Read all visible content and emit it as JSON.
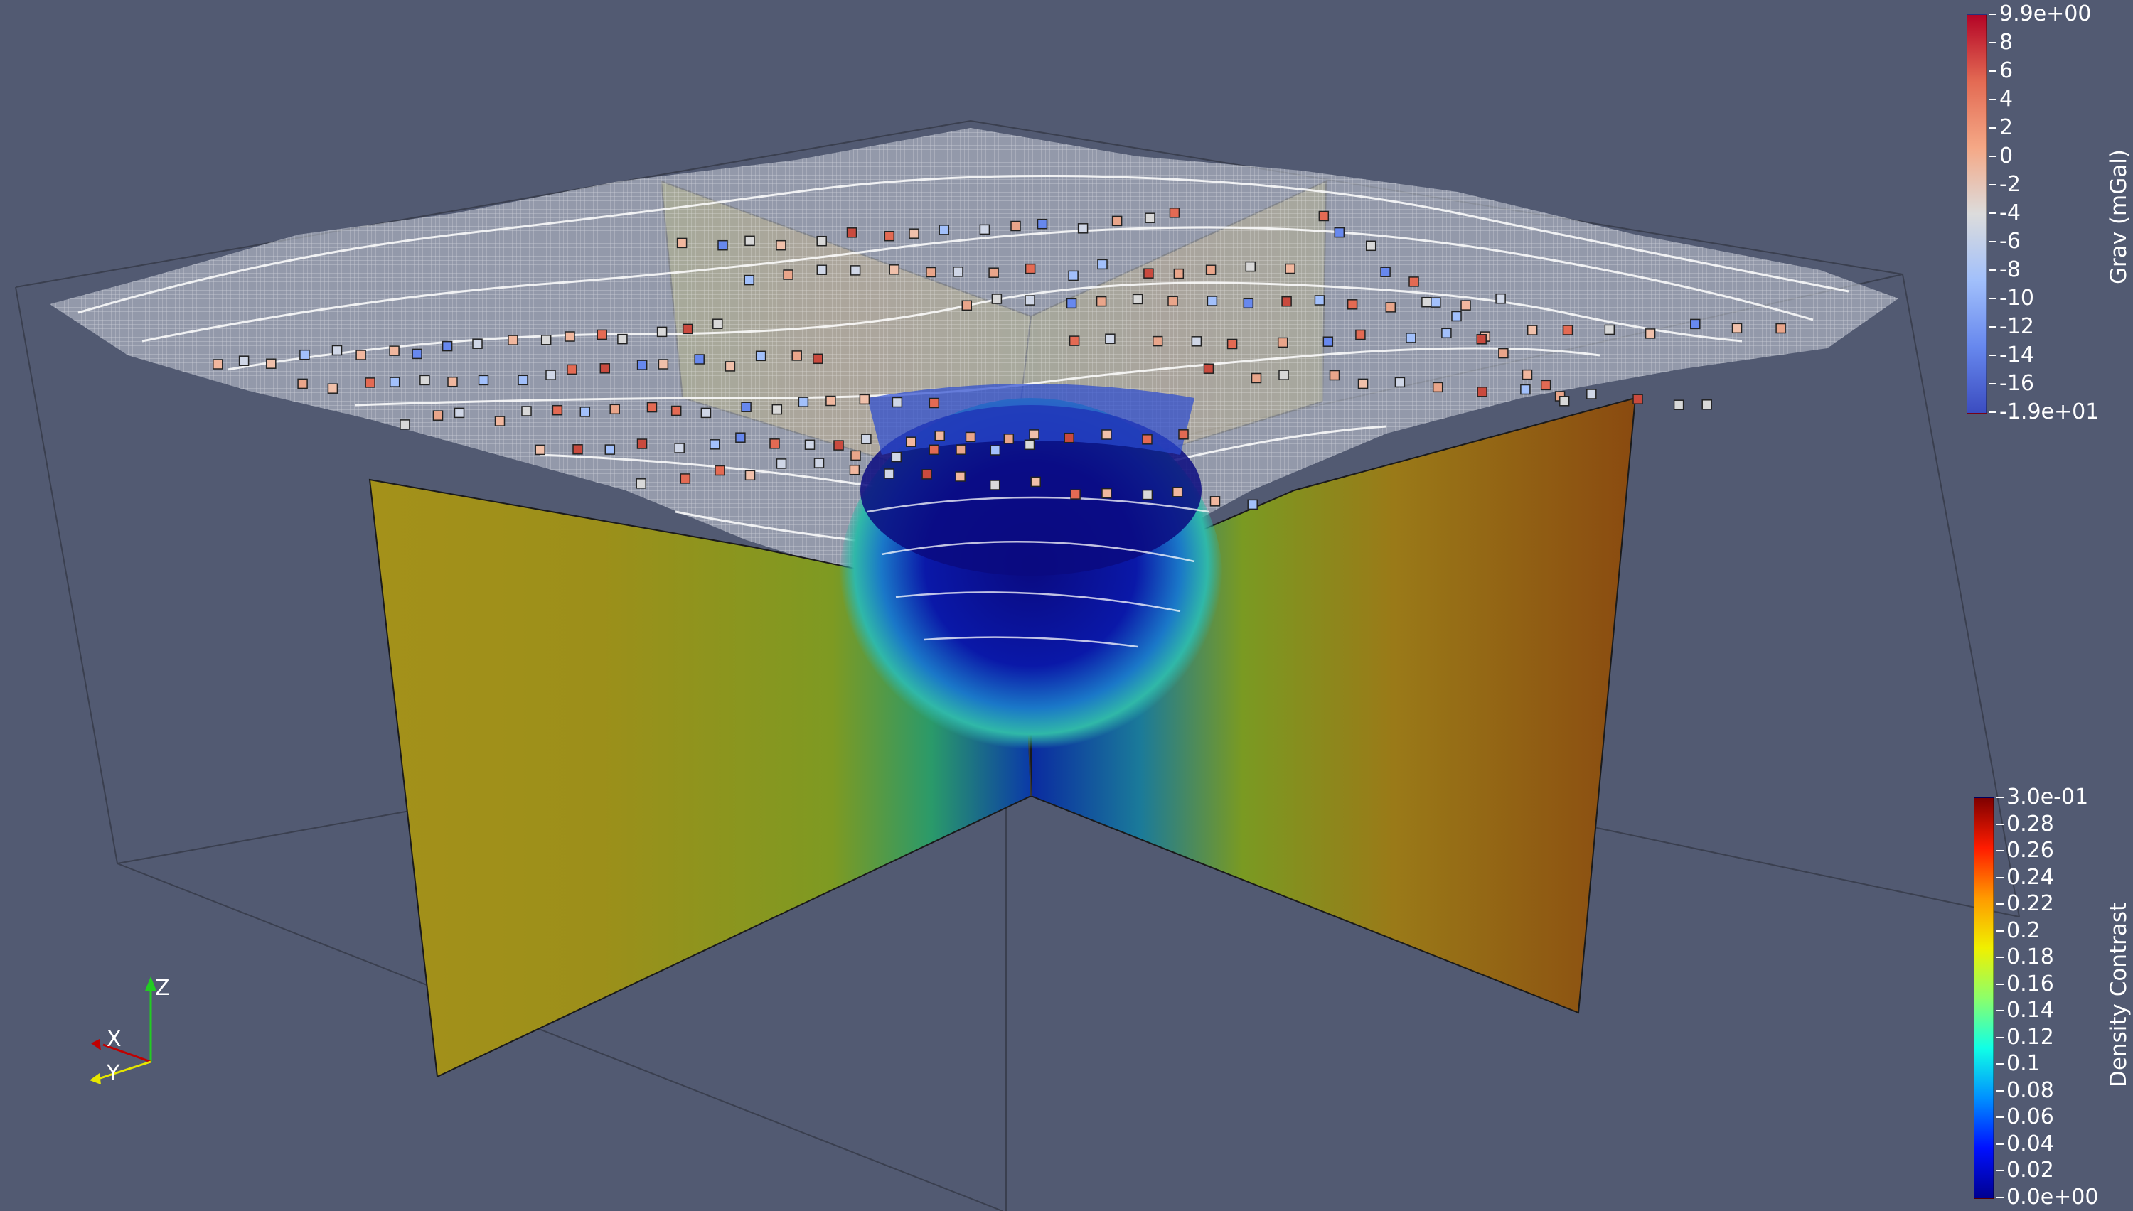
{
  "colors": {
    "background": "#525a72",
    "slice_yellow": "#a19a18",
    "slice_orange": "#9a5a14",
    "anomaly_blue": "#0a1a9a",
    "mesh_white": "#ffffff"
  },
  "grav_colorbar": {
    "title": "Grav (mGal)",
    "labels": [
      "9.9e+00",
      "8",
      "6",
      "4",
      "2",
      "0",
      "-2",
      "-4",
      "-6",
      "-8",
      "-10",
      "-12",
      "-14",
      "-16",
      "-1.9e+01"
    ],
    "colormap": [
      "#b40426",
      "#e36a53",
      "#f5a886",
      "#dcdcdc",
      "#a2c0fb",
      "#6788ee",
      "#3b4cc0"
    ]
  },
  "density_colorbar": {
    "title": "Density Contrast",
    "labels": [
      "3.0e-01",
      "0.28",
      "0.26",
      "0.24",
      "0.22",
      "0.2",
      "0.18",
      "0.16",
      "0.14",
      "0.12",
      "0.1",
      "0.08",
      "0.06",
      "0.04",
      "0.02",
      "0.0e+00"
    ],
    "colormap": [
      "#7f0000",
      "#ff1c00",
      "#ff9a00",
      "#f0f000",
      "#8cff6a",
      "#10ffe6",
      "#0090ff",
      "#0010ff",
      "#00008f"
    ]
  },
  "axes": {
    "x": "X",
    "y": "Y",
    "z": "Z",
    "x_color": "#c00000",
    "y_color": "#e6e600",
    "z_color": "#22cc22"
  }
}
